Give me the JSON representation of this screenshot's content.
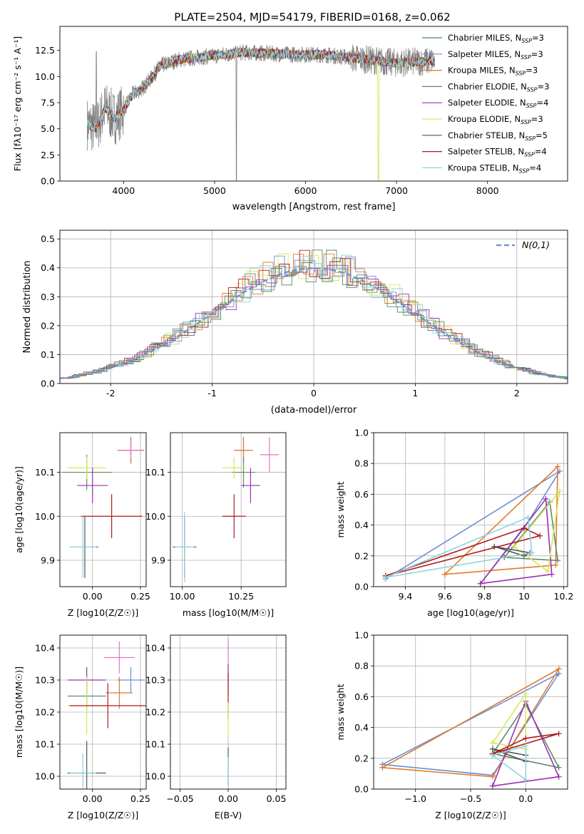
{
  "figure": {
    "title": "PLATE=2504, MJD=54179, FIBERID=0168, z=0.062"
  },
  "chart_data": [
    {
      "id": "spectrum",
      "type": "line",
      "xlabel": "wavelength [Angstrom, rest frame]",
      "ylabel": "Flux [fλ10⁻¹⁷ erg cm⁻² s⁻¹ A⁻¹]",
      "xlim": [
        3300,
        8880
      ],
      "ylim": [
        0,
        14.8
      ],
      "xticks": [
        4000,
        5000,
        6000,
        7000,
        8000
      ],
      "yticks": [
        0.0,
        2.5,
        5.0,
        7.5,
        10.0,
        12.5
      ],
      "legend": "top-right",
      "spectrum_shape": {
        "x": [
          3600,
          3700,
          3800,
          3900,
          4000,
          4100,
          4200,
          4300,
          4400,
          4600,
          4800,
          5000,
          5300,
          5600,
          5900,
          6200,
          6600,
          7000,
          7400
        ],
        "y": [
          5.5,
          5.0,
          7.0,
          6.0,
          6.8,
          8.3,
          8.8,
          9.8,
          11.0,
          11.6,
          11.8,
          12.0,
          12.3,
          12.2,
          12.1,
          12.1,
          11.7,
          11.3,
          11.5
        ]
      },
      "series": [
        {
          "name": "Chabrier MILES, N_SSP=3",
          "label_main": "Chabrier MILES, N",
          "label_sub": "SSP",
          "label_end": "=3",
          "color": "#4e8c5a"
        },
        {
          "name": "Salpeter MILES, N_SSP=3",
          "label_main": "Salpeter MILES, N",
          "label_sub": "SSP",
          "label_end": "=3",
          "color": "#6a8fd6"
        },
        {
          "name": "Kroupa MILES, N_SSP=3",
          "label_main": "Kroupa MILES, N",
          "label_sub": "SSP",
          "label_end": "=3",
          "color": "#e07b2e"
        },
        {
          "name": "Chabrier ELODIE, N_SSP=3",
          "label_main": "Chabrier ELODIE, N",
          "label_sub": "SSP",
          "label_end": "=3",
          "color": "#5f8a6a"
        },
        {
          "name": "Salpeter ELODIE, N_SSP=4",
          "label_main": "Salpeter ELODIE, N",
          "label_sub": "SSP",
          "label_end": "=4",
          "color": "#9b30b0"
        },
        {
          "name": "Kroupa ELODIE, N_SSP=3",
          "label_main": "Kroupa ELODIE, N",
          "label_sub": "SSP",
          "label_end": "=3",
          "color": "#d4e85a"
        },
        {
          "name": "Chabrier STELIB, N_SSP=5",
          "label_main": "Chabrier STELIB, N",
          "label_sub": "SSP",
          "label_end": "=5",
          "color": "#555555"
        },
        {
          "name": "Salpeter STELIB, N_SSP=4",
          "label_main": "Salpeter STELIB, N",
          "label_sub": "SSP",
          "label_end": "=4",
          "color": "#b01c1c"
        },
        {
          "name": "Kroupa STELIB, N_SSP=4",
          "label_main": "Kroupa STELIB, N",
          "label_sub": "SSP",
          "label_end": "=4",
          "color": "#8fd3e0"
        }
      ]
    },
    {
      "id": "residuals",
      "type": "histogram",
      "xlabel": "(data-model)/error",
      "ylabel": "Normed distribution",
      "xlim": [
        -2.5,
        2.5
      ],
      "ylim": [
        0,
        0.53
      ],
      "xticks": [
        -2,
        -1,
        0,
        1,
        2
      ],
      "yticks": [
        0.0,
        0.1,
        0.2,
        0.3,
        0.4,
        0.5
      ],
      "grid": true,
      "legend": "top-right",
      "legend_label": "N(0,1)",
      "gaussian_color": "#6a8fd6",
      "bin_width": 0.1,
      "hist_colors": [
        "#e07b2e",
        "#6a8fd6",
        "#5f8a6a",
        "#9b30b0",
        "#d4e85a",
        "#b01c1c",
        "#8fd3e0",
        "#4e8c5a"
      ]
    },
    {
      "id": "age-vs-Z",
      "type": "errorbar",
      "xlabel": "Z [log10(Z/Z☉)]",
      "ylabel": "age [log10(age/yr)]",
      "xlim": [
        -0.17,
        0.28
      ],
      "ylim": [
        9.84,
        10.19
      ],
      "xticks": [
        0.0,
        0.25
      ],
      "xticklabels": [
        "0.00",
        "0.25"
      ],
      "yticks": [
        9.9,
        10.0,
        10.1
      ],
      "grid": true,
      "points": [
        {
          "x": 0.2,
          "y": 10.15,
          "xerr": 0.07,
          "yerr": 0.03,
          "color": "#6a8fd6"
        },
        {
          "x": 0.2,
          "y": 10.15,
          "xerr": 0.07,
          "yerr": 0.03,
          "color": "#e07b2e"
        },
        {
          "x": 0.2,
          "y": 10.15,
          "xerr": 0.06,
          "yerr": 0.02,
          "color": "#e377c2"
        },
        {
          "x": -0.03,
          "y": 10.1,
          "xerr": 0.13,
          "yerr": 0.04,
          "color": "#5f8a6a"
        },
        {
          "x": -0.03,
          "y": 10.11,
          "xerr": 0.1,
          "yerr": 0.025,
          "color": "#d4e85a"
        },
        {
          "x": 0.0,
          "y": 10.07,
          "xerr": 0.08,
          "yerr": 0.04,
          "color": "#9b30b0"
        },
        {
          "x": 0.1,
          "y": 10.0,
          "xerr": 0.16,
          "yerr": 0.05,
          "color": "#b01c1c"
        },
        {
          "x": -0.04,
          "y": 9.93,
          "xerr": 0.07,
          "yerr": 0.07,
          "color": "#555555"
        },
        {
          "x": -0.05,
          "y": 9.93,
          "xerr": 0.07,
          "yerr": 0.07,
          "color": "#8fd3e0"
        }
      ]
    },
    {
      "id": "age-vs-mass",
      "type": "errorbar",
      "xlabel": "mass [log10(M/M☉)]",
      "ylabel": "",
      "xlim": [
        9.95,
        10.44
      ],
      "ylim": [
        9.84,
        10.19
      ],
      "xticks": [
        10.0,
        10.25
      ],
      "xticklabels": [
        "10.00",
        "10.25"
      ],
      "yticks": [
        9.9,
        10.0,
        10.1
      ],
      "grid": true,
      "points": [
        {
          "x": 10.26,
          "y": 10.15,
          "xerr": 0.04,
          "yerr": 0.03,
          "color": "#6a8fd6"
        },
        {
          "x": 10.26,
          "y": 10.15,
          "xerr": 0.04,
          "yerr": 0.03,
          "color": "#e07b2e"
        },
        {
          "x": 10.37,
          "y": 10.14,
          "xerr": 0.04,
          "yerr": 0.04,
          "color": "#e377c2"
        },
        {
          "x": 10.26,
          "y": 10.1,
          "xerr": 0.05,
          "yerr": 0.035,
          "color": "#5f8a6a"
        },
        {
          "x": 10.22,
          "y": 10.11,
          "xerr": 0.05,
          "yerr": 0.025,
          "color": "#d4e85a"
        },
        {
          "x": 10.29,
          "y": 10.07,
          "xerr": 0.04,
          "yerr": 0.04,
          "color": "#9b30b0"
        },
        {
          "x": 10.22,
          "y": 10.0,
          "xerr": 0.05,
          "yerr": 0.05,
          "color": "#b01c1c"
        },
        {
          "x": 10.01,
          "y": 9.93,
          "xerr": 0.05,
          "yerr": 0.07,
          "color": "#555555"
        },
        {
          "x": 10.01,
          "y": 9.93,
          "xerr": 0.04,
          "yerr": 0.08,
          "color": "#8fd3e0"
        }
      ]
    },
    {
      "id": "massweight-vs-age",
      "type": "line",
      "xlabel": "age [log10(age/yr)]",
      "ylabel": "mass weight",
      "xlim": [
        9.24,
        10.22
      ],
      "ylim": [
        0.0,
        1.0
      ],
      "xticks": [
        9.4,
        9.6,
        9.8,
        10.0,
        10.2
      ],
      "yticks": [
        0.0,
        0.2,
        0.4,
        0.6,
        0.8,
        1.0
      ],
      "grid": true,
      "series": [
        {
          "color": "#6a8fd6",
          "x": [
            9.3,
            10.18,
            10.0,
            9.78
          ],
          "y": [
            0.05,
            0.75,
            0.38,
            0.02
          ]
        },
        {
          "color": "#e07b2e",
          "x": [
            9.6,
            10.16,
            10.17,
            9.6
          ],
          "y": [
            0.08,
            0.14,
            0.78,
            0.08
          ]
        },
        {
          "color": "#5f8a6a",
          "x": [
            9.9,
            10.13,
            10.17,
            9.9
          ],
          "y": [
            0.19,
            0.55,
            0.17,
            0.19
          ]
        },
        {
          "color": "#9b30b0",
          "x": [
            9.78,
            10.11,
            10.14,
            9.78
          ],
          "y": [
            0.02,
            0.57,
            0.08,
            0.02
          ]
        },
        {
          "color": "#d4e85a",
          "x": [
            9.95,
            10.12,
            10.18,
            9.95
          ],
          "y": [
            0.26,
            0.1,
            0.62,
            0.26
          ]
        },
        {
          "color": "#555555",
          "x": [
            9.85,
            10.03,
            10.0,
            9.85
          ],
          "y": [
            0.26,
            0.22,
            0.2,
            0.26
          ]
        },
        {
          "color": "#b01c1c",
          "x": [
            9.3,
            10.0,
            10.08,
            9.3
          ],
          "y": [
            0.07,
            0.38,
            0.33,
            0.07
          ]
        },
        {
          "color": "#8fd3e0",
          "x": [
            9.3,
            10.02,
            10.04,
            9.3
          ],
          "y": [
            0.06,
            0.45,
            0.22,
            0.06
          ]
        }
      ]
    },
    {
      "id": "mass-vs-Z",
      "type": "errorbar",
      "xlabel": "Z [log10(Z/Z☉)]",
      "ylabel": "mass [log10(M/M☉)]",
      "xlim": [
        -0.17,
        0.28
      ],
      "ylim": [
        9.96,
        10.44
      ],
      "xticks": [
        0.0,
        0.25
      ],
      "xticklabels": [
        "0.00",
        "0.25"
      ],
      "yticks": [
        10.0,
        10.1,
        10.2,
        10.3,
        10.4
      ],
      "grid": true,
      "points": [
        {
          "x": 0.14,
          "y": 10.37,
          "xerr": 0.08,
          "yerr": 0.05,
          "color": "#e377c2"
        },
        {
          "x": -0.03,
          "y": 10.3,
          "xerr": 0.1,
          "yerr": 0.04,
          "color": "#9b30b0"
        },
        {
          "x": 0.2,
          "y": 10.3,
          "xerr": 0.07,
          "yerr": 0.04,
          "color": "#6a8fd6"
        },
        {
          "x": 0.14,
          "y": 10.26,
          "xerr": 0.07,
          "yerr": 0.05,
          "color": "#e07b2e"
        },
        {
          "x": -0.03,
          "y": 10.25,
          "xerr": 0.1,
          "yerr": 0.04,
          "color": "#5f8a6a"
        },
        {
          "x": -0.03,
          "y": 10.22,
          "xerr": 0.1,
          "yerr": 0.09,
          "color": "#d4e85a"
        },
        {
          "x": 0.08,
          "y": 10.22,
          "xerr": 0.2,
          "yerr": 0.07,
          "color": "#b01c1c"
        },
        {
          "x": -0.03,
          "y": 10.01,
          "xerr": 0.1,
          "yerr": 0.1,
          "color": "#555555"
        },
        {
          "x": -0.05,
          "y": 10.01,
          "xerr": 0.07,
          "yerr": 0.06,
          "color": "#8fd3e0"
        }
      ]
    },
    {
      "id": "mass-vs-EBV",
      "type": "errorbar",
      "xlabel": "E(B-V)",
      "ylabel": "",
      "xlim": [
        -0.06,
        0.06
      ],
      "ylim": [
        9.96,
        10.44
      ],
      "xticks": [
        -0.05,
        0.0,
        0.05
      ],
      "xticklabels": [
        "−0.05",
        "0.00",
        "0.05"
      ],
      "yticks": [
        10.0,
        10.1,
        10.2,
        10.3,
        10.4
      ],
      "grid": true,
      "points": [
        {
          "x": 0.0,
          "y": 10.37,
          "xerr": 0.0,
          "yerr": 0.06,
          "color": "#e377c2"
        },
        {
          "x": 0.0,
          "y": 10.3,
          "xerr": 0.0,
          "yerr": 0.05,
          "color": "#9b30b0"
        },
        {
          "x": 0.0,
          "y": 10.25,
          "xerr": 0.0,
          "yerr": 0.07,
          "color": "#b01c1c"
        },
        {
          "x": 0.0,
          "y": 10.18,
          "xerr": 0.0,
          "yerr": 0.05,
          "color": "#d4e85a"
        },
        {
          "x": 0.0,
          "y": 10.03,
          "xerr": 0.0,
          "yerr": 0.06,
          "color": "#555555"
        },
        {
          "x": 0.0,
          "y": 10.01,
          "xerr": 0.0,
          "yerr": 0.05,
          "color": "#8fd3e0"
        }
      ]
    },
    {
      "id": "massweight-vs-Z",
      "type": "line",
      "xlabel": "Z [log10(Z/Z☉)]",
      "ylabel": "mass weight",
      "xlim": [
        -1.38,
        0.38
      ],
      "ylim": [
        0.0,
        1.0
      ],
      "xticks": [
        -1.0,
        -0.5,
        0.0
      ],
      "xticklabels": [
        "−1.0",
        "−0.5",
        "0.0"
      ],
      "yticks": [
        0.0,
        0.2,
        0.4,
        0.6,
        0.8,
        1.0
      ],
      "grid": true,
      "series": [
        {
          "color": "#6a8fd6",
          "x": [
            -1.3,
            -0.3,
            0.3,
            -1.3
          ],
          "y": [
            0.16,
            0.09,
            0.75,
            0.16
          ]
        },
        {
          "color": "#e07b2e",
          "x": [
            -1.3,
            -0.3,
            0.3,
            -1.3
          ],
          "y": [
            0.14,
            0.08,
            0.78,
            0.14
          ]
        },
        {
          "color": "#5f8a6a",
          "x": [
            -0.3,
            0.0,
            0.3,
            -0.3
          ],
          "y": [
            0.23,
            0.55,
            0.14,
            0.23
          ]
        },
        {
          "color": "#9b30b0",
          "x": [
            -0.3,
            0.0,
            0.3,
            -0.3
          ],
          "y": [
            0.02,
            0.57,
            0.08,
            0.02
          ]
        },
        {
          "color": "#d4e85a",
          "x": [
            -0.3,
            0.0,
            0.0,
            -0.3
          ],
          "y": [
            0.3,
            0.62,
            0.26,
            0.3
          ]
        },
        {
          "color": "#555555",
          "x": [
            -0.3,
            0.0,
            0.0,
            -0.3
          ],
          "y": [
            0.26,
            0.22,
            0.18,
            0.26
          ]
        },
        {
          "color": "#b01c1c",
          "x": [
            -0.3,
            0.0,
            0.3,
            -0.3
          ],
          "y": [
            0.23,
            0.33,
            0.36,
            0.23
          ]
        },
        {
          "color": "#8fd3e0",
          "x": [
            -0.3,
            0.0,
            0.0,
            -0.3
          ],
          "y": [
            0.22,
            0.28,
            0.06,
            0.22
          ]
        }
      ]
    }
  ]
}
